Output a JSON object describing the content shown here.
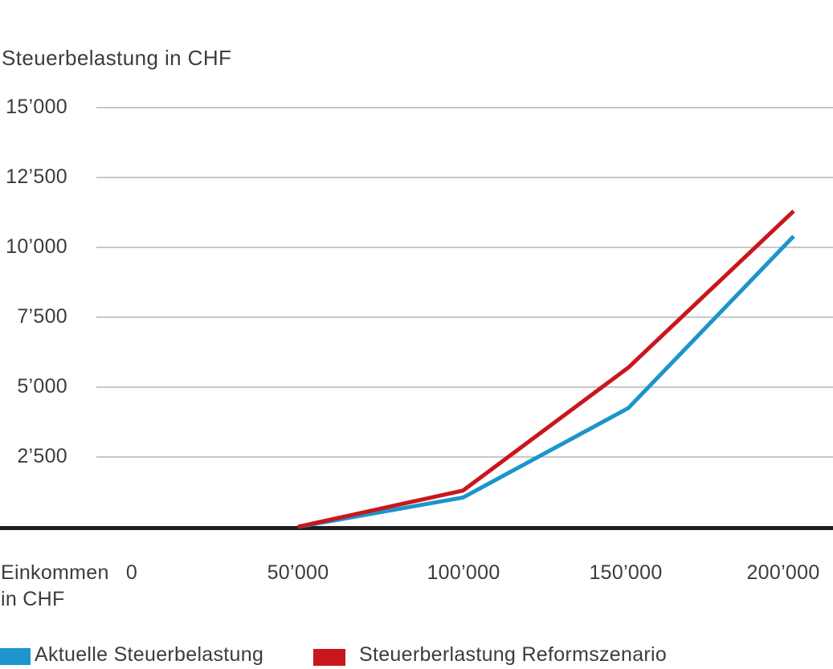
{
  "chart_data": {
    "type": "line",
    "title": "Steuerbelastung in CHF",
    "ylabel": "Steuerbelastung in CHF",
    "xlabel": "Einkommen in CHF",
    "xlabel_lines": [
      "Einkommen",
      "in CHF"
    ],
    "xlim": [
      0,
      200000
    ],
    "ylim": [
      0,
      15000
    ],
    "grid": "horizontal-only",
    "gridline_color": "#a8a8a8",
    "axis_color": "#1d1d1b",
    "text_color": "#3c3c3b",
    "background": "#ffffff",
    "legend_position": "bottom",
    "xticks": [
      {
        "value": 0,
        "label": "0"
      },
      {
        "value": 50000,
        "label": "50’000"
      },
      {
        "value": 100000,
        "label": "100’000"
      },
      {
        "value": 150000,
        "label": "150’000"
      },
      {
        "value": 200000,
        "label": "200’000"
      }
    ],
    "yticks": [
      {
        "value": 15000,
        "label": "15’000"
      },
      {
        "value": 12500,
        "label": "12’500"
      },
      {
        "value": 10000,
        "label": "10’000"
      },
      {
        "value": 7500,
        "label": "7’500"
      },
      {
        "value": 5000,
        "label": "5’000"
      },
      {
        "value": 2500,
        "label": "2’500"
      }
    ],
    "series": [
      {
        "name": "Aktuelle Steuerbelastung",
        "color": "#1b95cc",
        "x": [
          50000,
          100000,
          150000,
          200000
        ],
        "values": [
          0,
          1050,
          4250,
          10400
        ]
      },
      {
        "name": "Steuerberlastung Reformszenario",
        "color": "#c9161d",
        "x": [
          50000,
          100000,
          150000,
          200000
        ],
        "values": [
          0,
          1300,
          5700,
          11300
        ]
      }
    ]
  }
}
